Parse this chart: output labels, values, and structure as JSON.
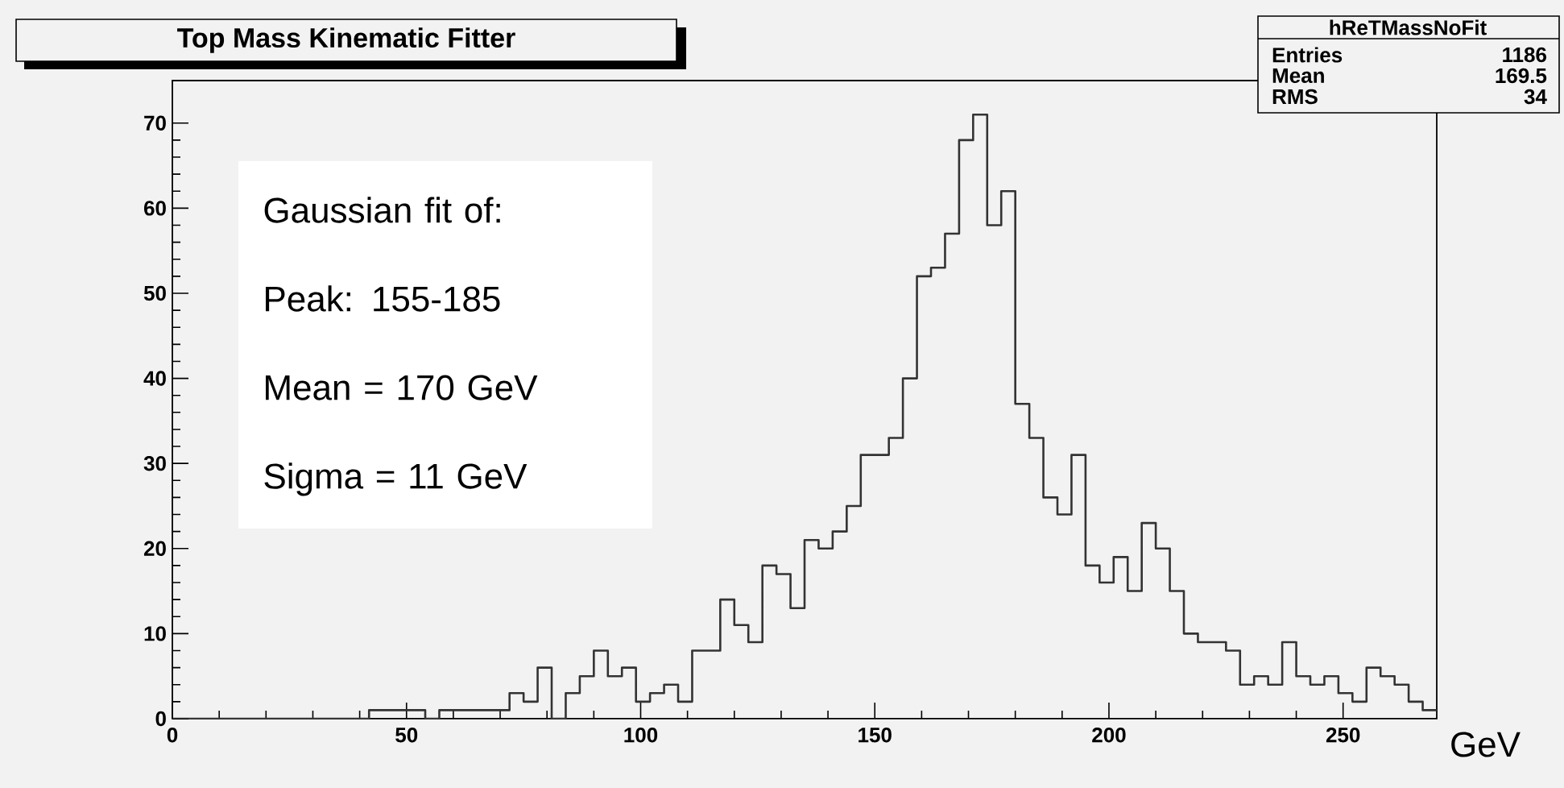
{
  "chart_data": {
    "type": "histogram",
    "title": "Top Mass Kinematic Fitter",
    "xlabel": "GeV",
    "bins": [
      0,
      3,
      6,
      9,
      12,
      15,
      18,
      21,
      24,
      27,
      30,
      33,
      36,
      39,
      42,
      45,
      48,
      51,
      54,
      57,
      60,
      63,
      66,
      69,
      72,
      75,
      78,
      81,
      84,
      87,
      90,
      93,
      96,
      99,
      102,
      105,
      108,
      111,
      114,
      117,
      120,
      123,
      126,
      129,
      132,
      135,
      138,
      141,
      144,
      147,
      150,
      153,
      156,
      159,
      162,
      165,
      168,
      171,
      174,
      177,
      180,
      183,
      186,
      189,
      192,
      195,
      198,
      201,
      204,
      207,
      210,
      213,
      216,
      219,
      222,
      225,
      228,
      231,
      234,
      237,
      240,
      243,
      246,
      249,
      252,
      255,
      258,
      261,
      264,
      267,
      270
    ],
    "values": [
      0,
      0,
      0,
      0,
      0,
      0,
      0,
      0,
      0,
      0,
      0,
      0,
      0,
      0,
      1,
      1,
      1,
      1,
      0,
      1,
      1,
      1,
      1,
      1,
      3,
      2,
      6,
      0,
      3,
      5,
      8,
      5,
      6,
      2,
      3,
      4,
      2,
      8,
      8,
      14,
      11,
      9,
      18,
      17,
      13,
      21,
      20,
      22,
      25,
      31,
      31,
      33,
      40,
      52,
      53,
      57,
      68,
      71,
      58,
      62,
      37,
      33,
      26,
      24,
      31,
      18,
      16,
      19,
      15,
      23,
      20,
      15,
      10,
      9,
      9,
      8,
      4,
      5,
      4,
      9,
      5,
      4,
      5,
      3,
      2,
      6,
      5,
      4,
      2,
      1
    ],
    "color": "#333333",
    "xlim": [
      0,
      270
    ],
    "ylim": [
      0,
      75
    ],
    "xticks": [
      0,
      50,
      100,
      150,
      200,
      250
    ],
    "yticks": [
      0,
      10,
      20,
      30,
      40,
      50,
      60,
      70
    ],
    "annotations": [
      "Gaussian fit of:",
      "Peak: 155-185",
      "Mean = 170 GeV",
      "Sigma = 11 GeV",
      "hReTMassNoFit",
      "Entries",
      "1186",
      "Mean",
      "169.5",
      "RMS",
      "34"
    ]
  }
}
